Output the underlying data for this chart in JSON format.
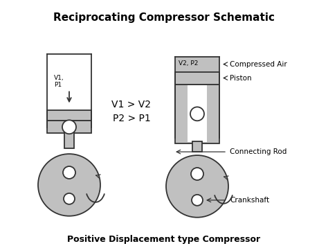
{
  "title": "Reciprocating Compressor Schematic",
  "subtitle": "Positive Displacement type Compressor",
  "bg_color": "#ffffff",
  "gray_fill": "#c0c0c0",
  "white_fill": "#ffffff",
  "dark_outline": "#333333",
  "labels": {
    "compressed_air": "Compressed Air",
    "piston": "Piston",
    "connecting_rod": "Connecting Rod",
    "crankshaft": "Crankshaft",
    "v1p1": "V1,\nP1",
    "v2p2": "V2, P2",
    "relation": "V1 > V2\nP2 > P1"
  }
}
